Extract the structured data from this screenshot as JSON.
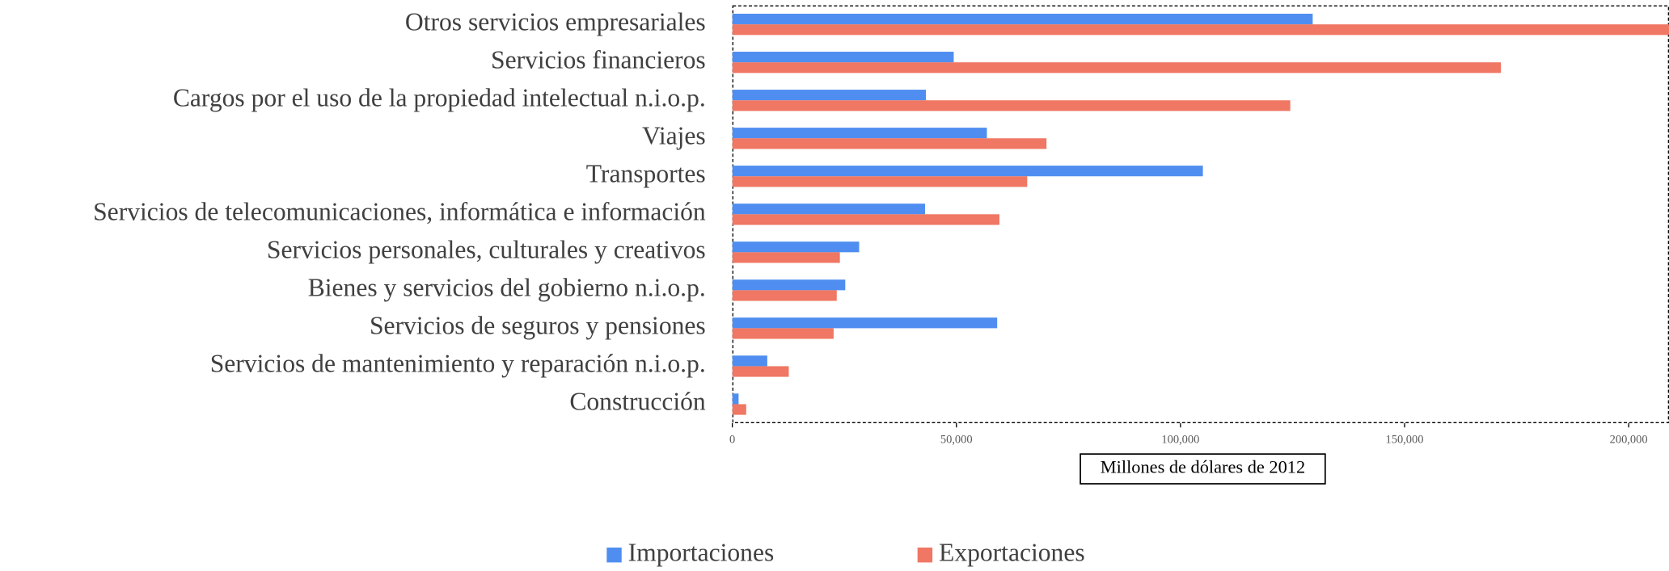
{
  "chart_data": {
    "type": "bar",
    "orientation": "horizontal",
    "categories": [
      "Otros servicios empresariales",
      "Servicios financieros",
      "Cargos por el uso de la propiedad intelectual n.i.o.p.",
      "Viajes",
      "Transportes",
      "Servicios de telecomunicaciones, informática e información",
      "Servicios personales, culturales y creativos",
      "Bienes y servicios del gobierno n.i.o.p.",
      "Servicios de seguros y pensiones",
      "Servicios de mantenimiento y reparación n.i.o.p.",
      "Construcción"
    ],
    "series": [
      {
        "name": "Importaciones",
        "color": "#4f8ef0",
        "values": [
          129500,
          49400,
          43200,
          56800,
          105000,
          43000,
          28300,
          25200,
          59100,
          7800,
          1400
        ]
      },
      {
        "name": "Exportaciones",
        "color": "#ef7763",
        "values": [
          212000,
          171500,
          124500,
          70100,
          65800,
          59600,
          24000,
          23300,
          22600,
          12600,
          3100
        ]
      }
    ],
    "xlabel": "Millones de dólares de 2012",
    "xlim": [
      0,
      209000
    ],
    "xticks": [
      0,
      {
        "value": 50000,
        "label": "50,000"
      },
      {
        "value": 100000,
        "label": "100,000"
      },
      {
        "value": 150000,
        "label": "150,000"
      },
      {
        "value": 200000,
        "label": "200,000"
      }
    ],
    "legend": "bottom"
  }
}
